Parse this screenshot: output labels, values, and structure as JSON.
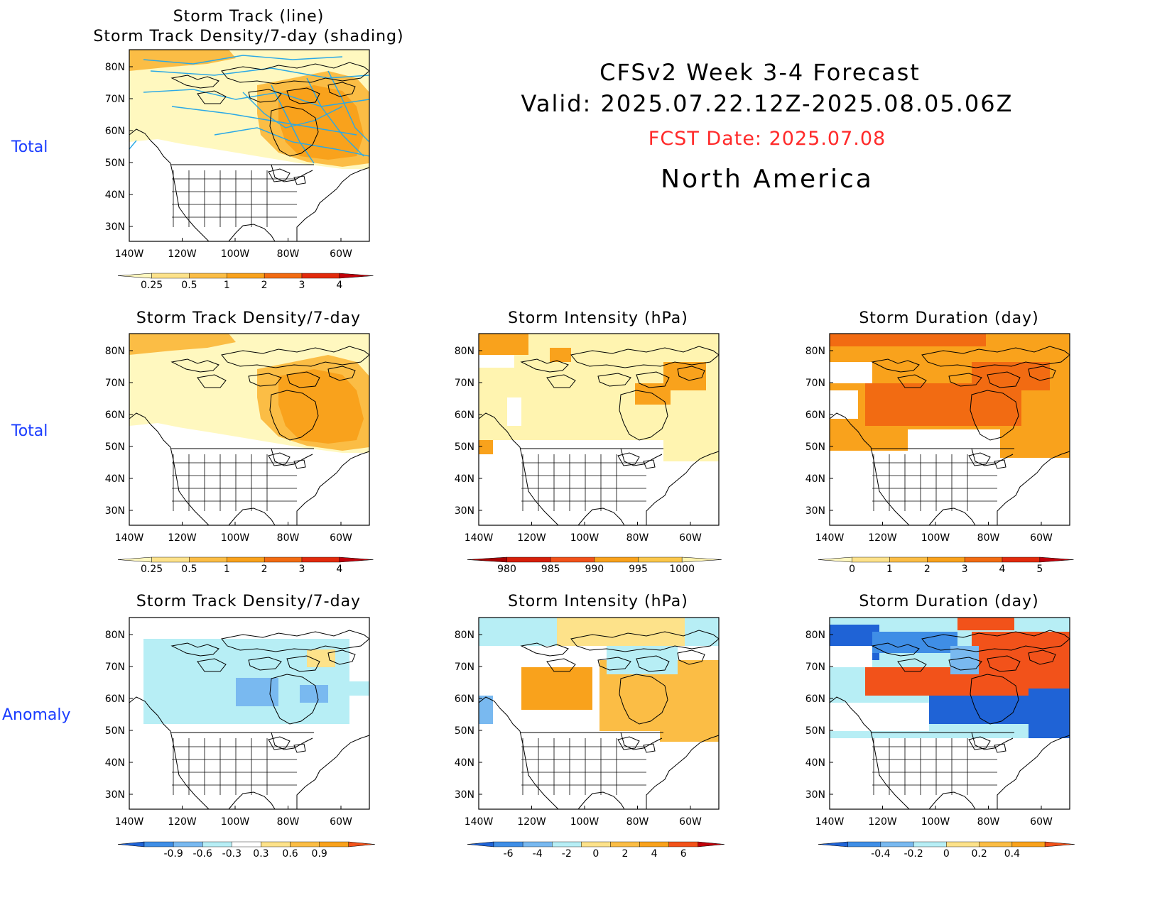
{
  "header": {
    "line1": "CFSv2 Week 3-4 Forecast",
    "line2": "Valid: 2025.07.22.12Z-2025.08.05.06Z",
    "fcst_date": "FCST Date: 2025.07.08",
    "region": "North America"
  },
  "row_labels": {
    "top": "Total",
    "middle": "Total",
    "bottom": "Anomaly"
  },
  "axes": {
    "lon_ticks": [
      "140W",
      "120W",
      "100W",
      "80W",
      "60W"
    ],
    "lat_ticks": [
      "80N",
      "70N",
      "60N",
      "50N",
      "40N",
      "30N"
    ]
  },
  "panels": {
    "track": {
      "title": "Storm Track (line)\nStorm Track Density/7-day (shading)"
    },
    "density_total": {
      "title": "Storm Track Density/7-day"
    },
    "intensity_total": {
      "title": "Storm Intensity (hPa)"
    },
    "duration_total": {
      "title": "Storm Duration (day)"
    },
    "density_anom": {
      "title": "Storm Track Density/7-day"
    },
    "intensity_anom": {
      "title": "Storm Intensity (hPa)"
    },
    "duration_anom": {
      "title": "Storm Duration (day)"
    }
  },
  "colorbars": {
    "track": {
      "labels": [
        "0.25",
        "0.5",
        "1",
        "2",
        "3",
        "4"
      ],
      "colors": [
        "#fff8bf",
        "#fde28a",
        "#fbbd45",
        "#f9a21c",
        "#f26b12",
        "#e22a0c",
        "#c0000a"
      ]
    },
    "density_total": {
      "labels": [
        "0.25",
        "0.5",
        "1",
        "2",
        "3",
        "4"
      ],
      "colors": [
        "#fff8bf",
        "#fde28a",
        "#fbbd45",
        "#f9a21c",
        "#f26b12",
        "#e22a0c",
        "#c0000a"
      ]
    },
    "intensity_total": {
      "labels": [
        "980",
        "985",
        "990",
        "995",
        "1000"
      ],
      "colors": [
        "#a80000",
        "#d61f0a",
        "#f2521a",
        "#f9a21c",
        "#fbc74a",
        "#fff4b0"
      ]
    },
    "duration_total": {
      "labels": [
        "0",
        "1",
        "2",
        "3",
        "4",
        "5"
      ],
      "colors": [
        "#fff8bf",
        "#fde28a",
        "#fbbd45",
        "#f9a21c",
        "#f26b12",
        "#e22a0c",
        "#c0000a"
      ]
    },
    "density_anom": {
      "labels": [
        "-0.9",
        "-0.6",
        "-0.3",
        "0.3",
        "0.6",
        "0.9"
      ],
      "colors": [
        "#1f63d6",
        "#3f8ee6",
        "#79b9f0",
        "#b7eef5",
        "#ffffff",
        "#fde28a",
        "#fbbd45",
        "#f9a21c",
        "#f2521a"
      ]
    },
    "intensity_anom": {
      "labels": [
        "-6",
        "-4",
        "-2",
        "0",
        "2",
        "4",
        "6"
      ],
      "colors": [
        "#1f63d6",
        "#3f8ee6",
        "#79b9f0",
        "#b7eef5",
        "#fde28a",
        "#fbbd45",
        "#f9a21c",
        "#f2521a",
        "#c0000a"
      ]
    },
    "duration_anom": {
      "labels": [
        "-0.4",
        "-0.2",
        "0",
        "0.2",
        "0.4"
      ],
      "colors": [
        "#1f63d6",
        "#3f8ee6",
        "#79b9f0",
        "#b7eef5",
        "#fde28a",
        "#fbbd45",
        "#f9a21c",
        "#f2521a"
      ]
    }
  },
  "colors": {
    "row_label": "#1a3cff",
    "fcst_date": "#ff2a2a",
    "track_line": "#2aa8e6"
  }
}
